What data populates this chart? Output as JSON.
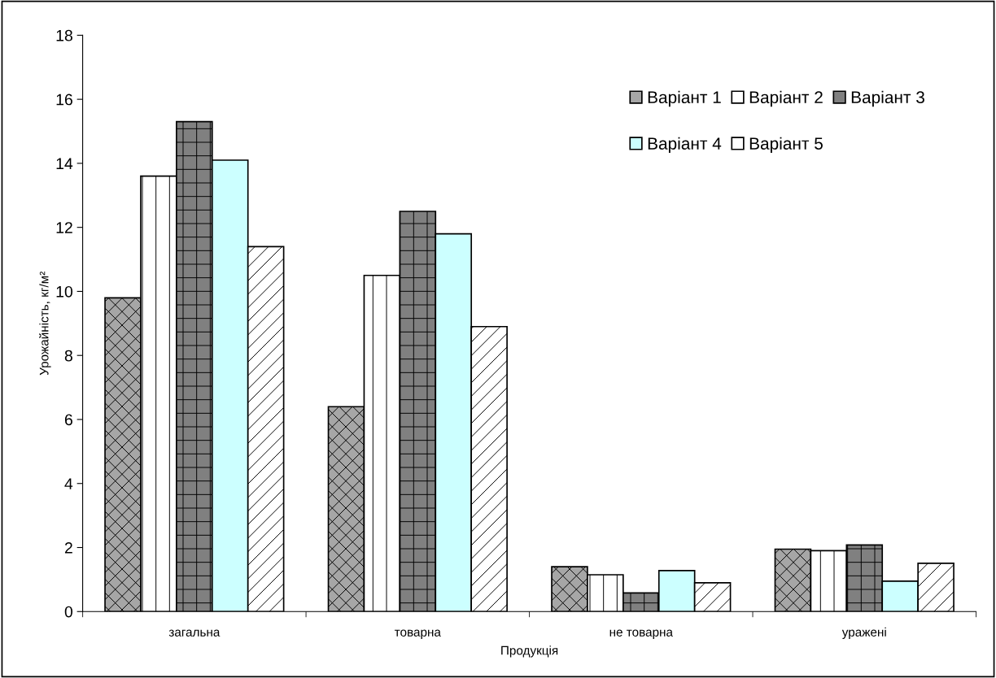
{
  "chart_data": {
    "type": "bar",
    "xlabel": "Продукція",
    "ylabel": "Урожайність, кг/м²",
    "categories": [
      "загальна",
      "товарна",
      "не товарна",
      "уражені"
    ],
    "series": [
      {
        "name": "Варіант 1",
        "color": "#a6a6a6",
        "values": [
          9.8,
          6.4,
          1.4,
          1.95
        ]
      },
      {
        "name": "Варіант 2",
        "color": "#ffffff",
        "values": [
          13.6,
          10.5,
          1.15,
          1.9
        ]
      },
      {
        "name": "Варіант 3",
        "color": "#808080",
        "values": [
          15.3,
          12.5,
          0.58,
          2.08
        ]
      },
      {
        "name": "Варіант 4",
        "color": "#ccffff",
        "values": [
          14.1,
          11.8,
          1.28,
          0.95
        ]
      },
      {
        "name": "Варіант 5",
        "color": "#ffffff",
        "values": [
          11.4,
          8.9,
          0.9,
          1.51
        ]
      }
    ],
    "ylim": [
      0,
      18
    ],
    "yticks": [
      0,
      2,
      4,
      6,
      8,
      10,
      12,
      14,
      16,
      18
    ],
    "grid": false,
    "legend": "top right"
  }
}
